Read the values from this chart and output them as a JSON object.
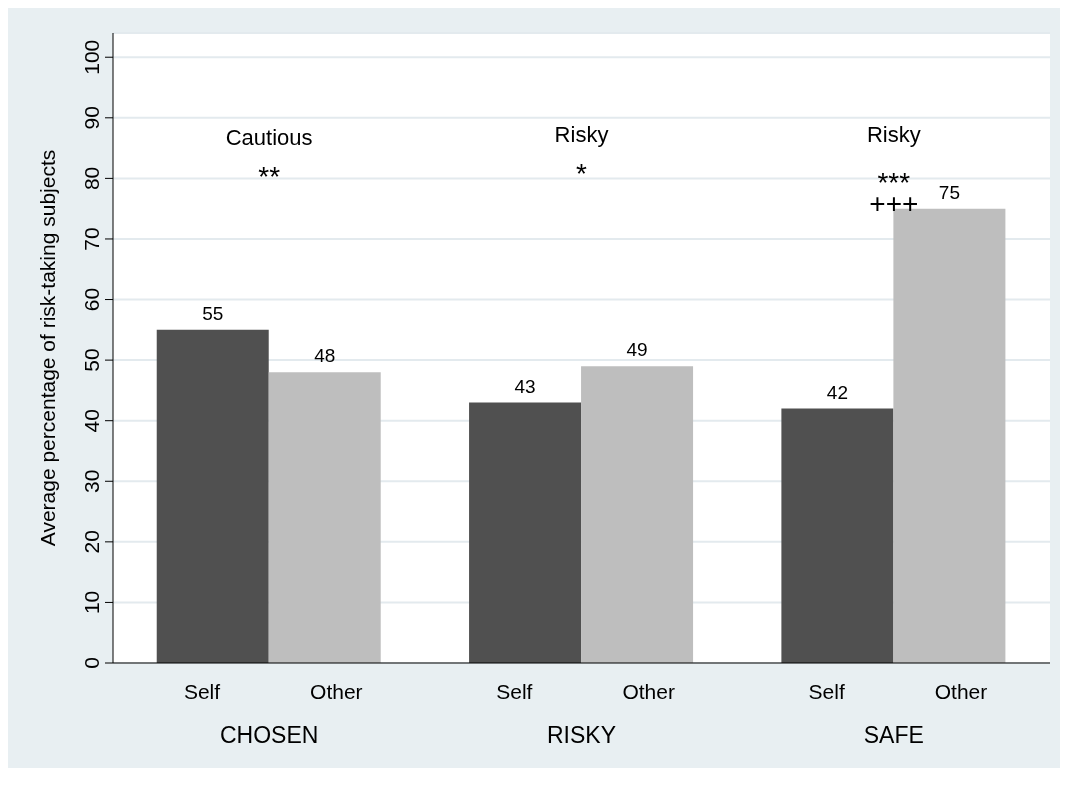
{
  "chart_data": {
    "type": "bar",
    "ylabel": "Average percentage of risk-taking subjects",
    "categories": [
      "CHOSEN",
      "RISKY",
      "SAFE"
    ],
    "series": [
      {
        "name": "Self",
        "color": "#505050",
        "values": [
          55,
          43,
          42
        ]
      },
      {
        "name": "Other",
        "color": "#bebebe",
        "values": [
          48,
          49,
          75
        ]
      }
    ],
    "ylim": [
      0,
      104
    ],
    "yticks": [
      0,
      10,
      20,
      30,
      40,
      50,
      60,
      70,
      80,
      90,
      100
    ],
    "grid": "y",
    "data_labels": true,
    "legend": false,
    "annotations": [
      "Cautious",
      "**",
      "Risky",
      "*",
      "Risky",
      "***",
      "+++"
    ]
  }
}
